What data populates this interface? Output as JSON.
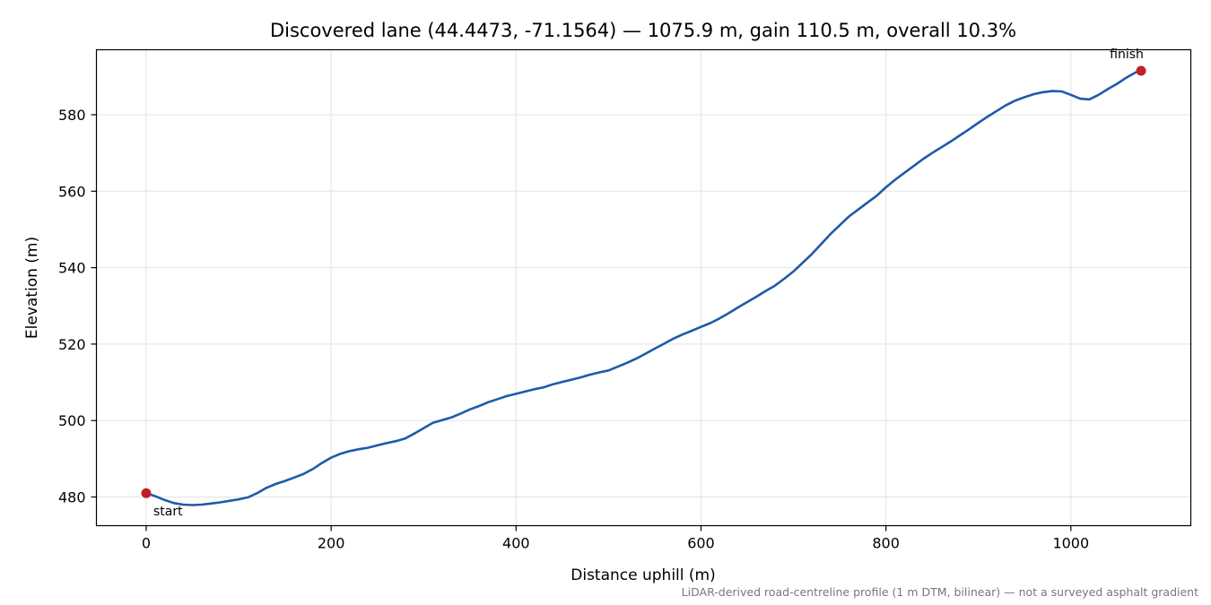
{
  "chart_data": {
    "type": "line",
    "title": "Discovered lane (44.4473, -71.1564) — 1075.9 m, gain 110.5 m, overall 10.3%",
    "xlabel": "Distance uphill (m)",
    "ylabel": "Elevation (m)",
    "xlim": [
      -53.8,
      1129.7
    ],
    "ylim": [
      472.5,
      597.0
    ],
    "xticks": [
      0,
      200,
      400,
      600,
      800,
      1000
    ],
    "yticks": [
      480,
      500,
      520,
      540,
      560,
      580
    ],
    "grid": true,
    "series": [
      {
        "x": [
          0,
          10,
          20,
          30,
          40,
          50,
          60,
          70,
          80,
          90,
          100,
          110,
          120,
          130,
          140,
          150,
          160,
          170,
          180,
          190,
          200,
          210,
          220,
          230,
          240,
          250,
          260,
          270,
          280,
          290,
          300,
          310,
          320,
          330,
          340,
          350,
          360,
          370,
          380,
          390,
          400,
          410,
          420,
          430,
          440,
          450,
          460,
          470,
          480,
          490,
          500,
          510,
          520,
          530,
          540,
          550,
          560,
          570,
          580,
          590,
          600,
          610,
          620,
          630,
          640,
          650,
          660,
          670,
          680,
          690,
          700,
          710,
          720,
          730,
          740,
          750,
          760,
          770,
          780,
          790,
          800,
          810,
          820,
          830,
          840,
          850,
          860,
          870,
          880,
          890,
          900,
          910,
          920,
          930,
          940,
          950,
          960,
          970,
          980,
          990,
          1000,
          1010,
          1020,
          1030,
          1040,
          1050,
          1060,
          1070,
          1075.9
        ],
        "y": [
          481.0,
          480.2,
          479.2,
          478.4,
          478.0,
          477.9,
          478.0,
          478.3,
          478.6,
          479.0,
          479.4,
          479.9,
          481.0,
          482.4,
          483.4,
          484.2,
          485.1,
          486.0,
          487.3,
          488.9,
          490.3,
          491.3,
          492.0,
          492.5,
          492.9,
          493.5,
          494.1,
          494.6,
          495.3,
          496.6,
          498.0,
          499.4,
          500.1,
          500.8,
          501.8,
          502.9,
          503.8,
          504.8,
          505.6,
          506.4,
          507.0,
          507.6,
          508.2,
          508.7,
          509.5,
          510.1,
          510.7,
          511.3,
          512.0,
          512.6,
          513.1,
          514.1,
          515.1,
          516.2,
          517.5,
          518.8,
          520.1,
          521.4,
          522.5,
          523.5,
          524.5,
          525.5,
          526.7,
          528.1,
          529.6,
          531.0,
          532.4,
          533.9,
          535.3,
          537.1,
          539.0,
          541.3,
          543.6,
          546.2,
          548.8,
          551.1,
          553.4,
          555.2,
          557.0,
          558.8,
          561.0,
          563.0,
          564.8,
          566.6,
          568.4,
          570.0,
          571.5,
          573.0,
          574.6,
          576.2,
          577.9,
          579.5,
          581.0,
          582.5,
          583.7,
          584.6,
          585.4,
          585.9,
          586.2,
          586.1,
          585.2,
          584.2,
          584.0,
          585.2,
          586.7,
          588.1,
          589.7,
          591.1,
          591.5
        ],
        "color": "#1f5aa9"
      }
    ],
    "markers": [
      {
        "label": "start",
        "x": 0,
        "y": 481.0,
        "color": "#c0202a"
      },
      {
        "label": "finish",
        "x": 1075.9,
        "y": 591.5,
        "color": "#c0202a"
      }
    ],
    "footnote": "LiDAR-derived road-centreline profile (1 m DTM, bilinear) — not a surveyed asphalt gradient"
  }
}
